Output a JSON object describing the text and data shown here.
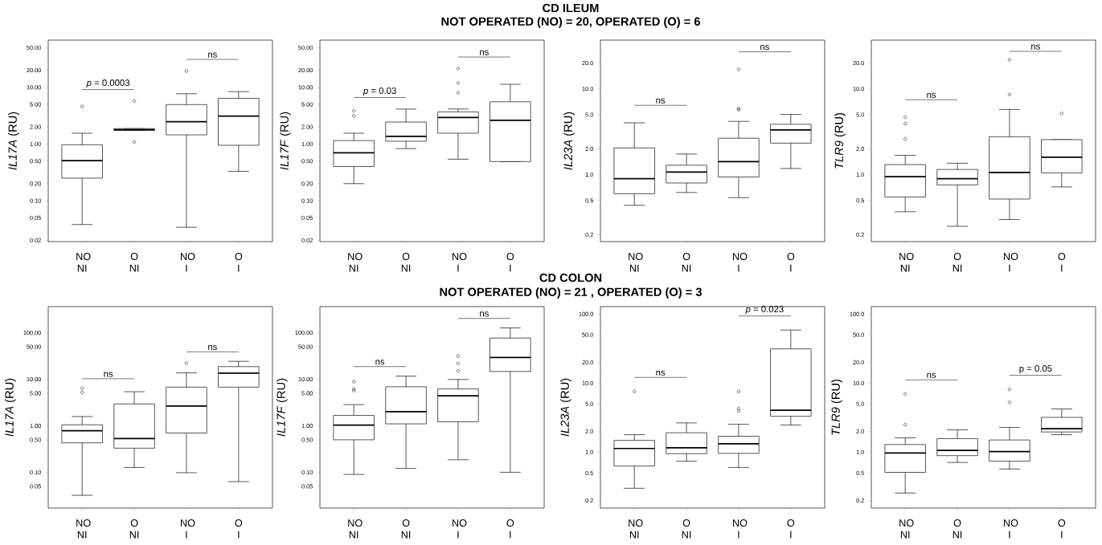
{
  "chart_data": [
    {
      "type": "other",
      "title": "CD ILEUM",
      "subtitle": "NOT OPERATED (NO) = 20, OPERATED (O) = 6"
    },
    {
      "type": "box",
      "ylabel": "*IL17A* (RU)",
      "categories": [
        "NO NI",
        "O NI",
        "NO I",
        "O I"
      ],
      "log": true,
      "ylim": [
        0.019,
        68
      ],
      "yticks": [
        0.02,
        0.05,
        {
          "value": 0.1,
          "label": "0.10"
        },
        {
          "value": 0.2,
          "label": "0.20"
        },
        {
          "value": 0.5,
          "label": "0.50"
        },
        {
          "value": 1,
          "label": "1.00"
        },
        {
          "value": 2,
          "label": "2.00"
        },
        {
          "value": 5,
          "label": "5.00"
        },
        {
          "value": 10,
          "label": "10.00"
        },
        {
          "value": 20,
          "label": "20.00"
        },
        {
          "value": 50,
          "label": "50.00"
        }
      ],
      "boxes": [
        {
          "low": 0.038,
          "q1": 0.25,
          "median": 0.51,
          "q3": 0.97,
          "high": 1.55,
          "outliers": [
            4.6
          ]
        },
        {
          "low": 1.74,
          "q1": 1.74,
          "median": 1.79,
          "q3": 1.87,
          "high": 1.87,
          "outliers": [
            5.7,
            1.09
          ]
        },
        {
          "low": 0.034,
          "q1": 1.45,
          "median": 2.48,
          "q3": 4.96,
          "high": 7.7,
          "outliers": [
            19.4
          ]
        },
        {
          "low": 0.33,
          "q1": 0.95,
          "median": 3.1,
          "q3": 6.4,
          "high": 8.4
        }
      ],
      "annotations": [
        "*p* = 0.0003",
        "ns"
      ]
    },
    {
      "type": "box",
      "ylabel": "*IL17F* (RU)",
      "categories": [
        "NO NI",
        "O NI",
        "NO I",
        "O I"
      ],
      "log": true,
      "ylim": [
        0.019,
        68
      ],
      "yticks": [
        0.02,
        0.05,
        {
          "value": 0.1,
          "label": "0.10"
        },
        {
          "value": 0.2,
          "label": "0.20"
        },
        {
          "value": 0.5,
          "label": "0.50"
        },
        {
          "value": 1,
          "label": "1.00"
        },
        {
          "value": 2,
          "label": "2.00"
        },
        {
          "value": 5,
          "label": "5.00"
        },
        {
          "value": 10,
          "label": "10.00"
        },
        {
          "value": 20,
          "label": "20.00"
        },
        {
          "value": 50,
          "label": "50.00"
        }
      ],
      "boxes": [
        {
          "low": 0.2,
          "q1": 0.4,
          "median": 0.7,
          "q3": 1.15,
          "high": 1.55,
          "outliers": [
            3.85,
            3.15
          ]
        },
        {
          "low": 0.83,
          "q1": 1.12,
          "median": 1.37,
          "q3": 2.44,
          "high": 4.13
        },
        {
          "low": 0.54,
          "q1": 1.55,
          "median": 2.94,
          "q3": 3.69,
          "high": 4.15,
          "outliers": [
            21.4,
            11.9,
            8.0
          ]
        },
        {
          "low": 0.49,
          "q1": 0.49,
          "median": 2.62,
          "q3": 5.56,
          "high": 11.3
        }
      ],
      "annotations": [
        "*p* = 0.03",
        "ns"
      ]
    },
    {
      "type": "box",
      "ylabel": "*IL23A* (RU)",
      "categories": [
        "NO NI",
        "O NI",
        "NO I",
        "O I"
      ],
      "log": true,
      "ylim": [
        0.166,
        37
      ],
      "yticks": [
        0.2,
        0.5,
        {
          "value": 1,
          "label": "1.0"
        },
        {
          "value": 2,
          "label": "2.0"
        },
        {
          "value": 5,
          "label": "5.0"
        },
        {
          "value": 10,
          "label": "10.0"
        },
        {
          "value": 20,
          "label": "20.0"
        }
      ],
      "boxes": [
        {
          "low": 0.44,
          "q1": 0.6,
          "median": 0.9,
          "q3": 2.05,
          "high": 4.02
        },
        {
          "low": 0.62,
          "q1": 0.8,
          "median": 1.07,
          "q3": 1.29,
          "high": 1.74
        },
        {
          "low": 0.54,
          "q1": 0.94,
          "median": 1.42,
          "q3": 2.66,
          "high": 4.18,
          "outliers": [
            16.9,
            5.9,
            5.7
          ]
        },
        {
          "low": 1.18,
          "q1": 2.33,
          "median": 3.33,
          "q3": 3.87,
          "high": 5.04
        }
      ],
      "annotations": [
        "ns",
        "ns"
      ]
    },
    {
      "type": "box",
      "ylabel": "*TLR9* (RU)",
      "categories": [
        "NO NI",
        "O NI",
        "NO I",
        "O I"
      ],
      "log": true,
      "ylim": [
        0.166,
        37
      ],
      "yticks": [
        0.2,
        0.5,
        {
          "value": 1,
          "label": "1.0"
        },
        {
          "value": 2,
          "label": "2.0"
        },
        {
          "value": 5,
          "label": "5.0"
        },
        {
          "value": 10,
          "label": "10.0"
        },
        {
          "value": 20,
          "label": "20.0"
        }
      ],
      "boxes": [
        {
          "low": 0.37,
          "q1": 0.55,
          "median": 0.95,
          "q3": 1.31,
          "high": 1.68,
          "outliers": [
            4.67,
            3.94,
            2.61
          ]
        },
        {
          "low": 0.25,
          "q1": 0.76,
          "median": 0.9,
          "q3": 1.15,
          "high": 1.36
        },
        {
          "low": 0.3,
          "q1": 0.52,
          "median": 1.06,
          "q3": 2.77,
          "high": 5.75,
          "outliers": [
            21.9,
            8.6
          ]
        },
        {
          "low": 0.72,
          "q1": 1.05,
          "median": 1.6,
          "q3": 2.56,
          "high": 2.56,
          "outliers": [
            5.18
          ]
        }
      ],
      "annotations": [
        "ns",
        "ns"
      ]
    },
    {
      "type": "other",
      "title": "CD COLON",
      "subtitle": "NOT OPERATED (NO) = 21 , OPERATED (O) = 3"
    },
    {
      "type": "box",
      "ylabel": "*IL17A* (RU)",
      "categories": [
        "NO NI",
        "O NI",
        "NO I",
        "O I"
      ],
      "log": true,
      "ylim": [
        0.017,
        365
      ],
      "yticks": [
        0.05,
        {
          "value": 0.1,
          "label": "0.10"
        },
        {
          "value": 0.5,
          "label": "0.50"
        },
        {
          "value": 1,
          "label": "1.00"
        },
        {
          "value": 5,
          "label": "5.00"
        },
        {
          "value": 10,
          "label": "10.00"
        },
        {
          "value": 50,
          "label": "50.00"
        },
        {
          "value": 100,
          "label": "100.00"
        }
      ],
      "boxes": [
        {
          "low": 0.032,
          "q1": 0.43,
          "median": 0.78,
          "q3": 1.05,
          "high": 1.58,
          "outliers": [
            6.4,
            5.2
          ]
        },
        {
          "low": 0.127,
          "q1": 0.33,
          "median": 0.53,
          "q3": 2.95,
          "high": 5.4
        },
        {
          "low": 0.098,
          "q1": 0.7,
          "median": 2.66,
          "q3": 6.76,
          "high": 13.7,
          "outliers": [
            22.2
          ]
        },
        {
          "low": 0.063,
          "q1": 6.76,
          "median": 13.5,
          "q3": 18.7,
          "high": 24.3
        }
      ],
      "annotations": [
        "ns",
        "ns"
      ]
    },
    {
      "type": "box",
      "ylabel": "*IL17F* (RU)",
      "categories": [
        "NO NI",
        "O NI",
        "NO I",
        "O I"
      ],
      "log": true,
      "ylim": [
        0.017,
        365
      ],
      "yticks": [
        0.05,
        {
          "value": 0.1,
          "label": "0.10"
        },
        {
          "value": 0.5,
          "label": "0.50"
        },
        {
          "value": 1,
          "label": "1.00"
        },
        {
          "value": 5,
          "label": "5.00"
        },
        {
          "value": 10,
          "label": "10.00"
        },
        {
          "value": 50,
          "label": "50.00"
        },
        {
          "value": 100,
          "label": "100.00"
        }
      ],
      "boxes": [
        {
          "low": 0.09,
          "q1": 0.5,
          "median": 1.03,
          "q3": 1.67,
          "high": 2.85,
          "outliers": [
            8.9,
            6.2,
            5.7
          ]
        },
        {
          "low": 0.121,
          "q1": 1.1,
          "median": 2.02,
          "q3": 6.9,
          "high": 11.7
        },
        {
          "low": 0.186,
          "q1": 1.22,
          "median": 4.39,
          "q3": 6.2,
          "high": 9.9,
          "outliers": [
            31.4,
            21.9,
            15.2
          ]
        },
        {
          "low": 0.1,
          "q1": 14.7,
          "median": 29.3,
          "q3": 77,
          "high": 127
        }
      ],
      "annotations": [
        "ns",
        "ns"
      ]
    },
    {
      "type": "box",
      "ylabel": "*IL23A* (RU)",
      "categories": [
        "NO NI",
        "O NI",
        "NO I",
        "O I"
      ],
      "log": true,
      "ylim": [
        0.155,
        128
      ],
      "yticks": [
        0.2,
        0.5,
        {
          "value": 1,
          "label": "1.0"
        },
        {
          "value": 2,
          "label": "2.0"
        },
        {
          "value": 5,
          "label": "5.0"
        },
        {
          "value": 10,
          "label": "10.0"
        },
        {
          "value": 20,
          "label": "20.0"
        },
        {
          "value": 50,
          "label": "50.0"
        },
        {
          "value": 100,
          "label": "100.0"
        }
      ],
      "boxes": [
        {
          "low": 0.3,
          "q1": 0.63,
          "median": 1.13,
          "q3": 1.48,
          "high": 1.79,
          "outliers": [
            7.55
          ]
        },
        {
          "low": 0.74,
          "q1": 0.95,
          "median": 1.16,
          "q3": 1.91,
          "high": 2.65
        },
        {
          "low": 0.6,
          "q1": 0.96,
          "median": 1.32,
          "q3": 1.7,
          "high": 2.53,
          "outliers": [
            7.55,
            4.27,
            3.94
          ]
        },
        {
          "low": 2.47,
          "q1": 3.31,
          "median": 4.03,
          "q3": 31.3,
          "high": 58.6
        }
      ],
      "annotations": [
        "ns",
        "*p* = 0.023"
      ]
    },
    {
      "type": "box",
      "ylabel": "*TLR9* (RU)",
      "categories": [
        "NO NI",
        "O NI",
        "NO I",
        "O I"
      ],
      "log": true,
      "ylim": [
        0.155,
        128
      ],
      "yticks": [
        0.2,
        0.5,
        {
          "value": 1,
          "label": "1.0"
        },
        {
          "value": 2,
          "label": "2.0"
        },
        {
          "value": 5,
          "label": "5.0"
        },
        {
          "value": 10,
          "label": "10.0"
        },
        {
          "value": 20,
          "label": "20.0"
        },
        {
          "value": 50,
          "label": "50.0"
        },
        {
          "value": 100,
          "label": "100.0"
        }
      ],
      "boxes": [
        {
          "low": 0.256,
          "q1": 0.51,
          "median": 0.97,
          "q3": 1.29,
          "high": 1.61,
          "outliers": [
            6.96,
            2.5
          ]
        },
        {
          "low": 0.71,
          "q1": 0.89,
          "median": 1.06,
          "q3": 1.57,
          "high": 2.1
        },
        {
          "low": 0.57,
          "q1": 0.74,
          "median": 1.02,
          "q3": 1.5,
          "high": 2.28,
          "outliers": [
            8.1,
            5.27
          ]
        },
        {
          "low": 1.79,
          "q1": 1.96,
          "median": 2.18,
          "q3": 3.19,
          "high": 4.22
        }
      ],
      "annotations": [
        "ns",
        "p = 0.05"
      ]
    }
  ]
}
